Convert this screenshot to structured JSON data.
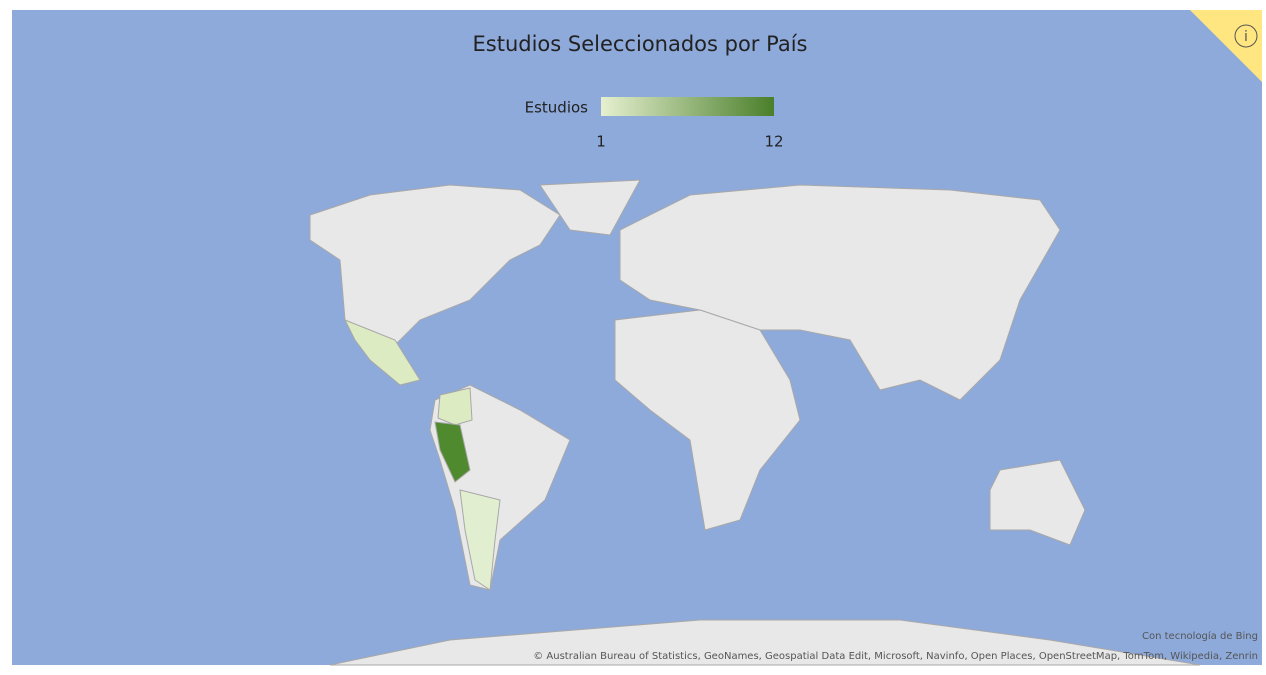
{
  "chart_data": {
    "type": "choropleth",
    "title": "Estudios Seleccionados por País",
    "legend": {
      "title": "Estudios",
      "min": 1,
      "max": 12,
      "colors": [
        "#e6f0d0",
        "#4a7f2a"
      ]
    },
    "credit": "Con tecnología de Bing",
    "attribution": "© Australian Bureau of Statistics, GeoNames, Geospatial Data Edit, Microsoft, Navinfo, Open Places, OpenStreetMap, TomTom, Wikipedia, Zenrin"
  }
}
